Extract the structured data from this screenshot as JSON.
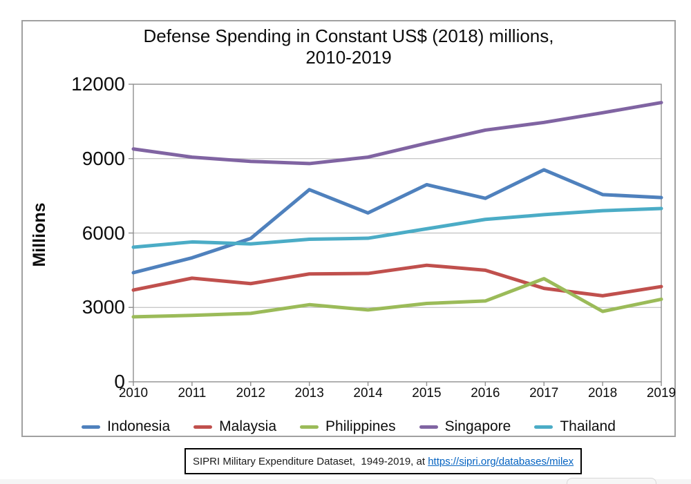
{
  "chart_data": {
    "type": "line",
    "title": "Defense Spending in Constant US$ (2018) millions, 2010-2019",
    "title_lines": [
      "Defense Spending in Constant US$ (2018) millions,",
      "2010-2019"
    ],
    "ylabel": "Millions",
    "xlabel": "",
    "x": [
      2010,
      2011,
      2012,
      2013,
      2014,
      2015,
      2016,
      2017,
      2018,
      2019
    ],
    "ylim": [
      0,
      12000
    ],
    "yticks": [
      0,
      3000,
      6000,
      9000,
      12000
    ],
    "grid": true,
    "legend_position": "bottom",
    "series": [
      {
        "name": "Indonesia",
        "color": "#4F81BD",
        "values": [
          4400,
          5000,
          5780,
          7750,
          6810,
          7950,
          7400,
          8550,
          7550,
          7430
        ]
      },
      {
        "name": "Malaysia",
        "color": "#C0504D",
        "values": [
          3700,
          4180,
          3960,
          4350,
          4370,
          4700,
          4500,
          3770,
          3470,
          3840
        ]
      },
      {
        "name": "Philippines",
        "color": "#9BBB59",
        "values": [
          2620,
          2680,
          2760,
          3110,
          2900,
          3160,
          3260,
          4160,
          2840,
          3330
        ]
      },
      {
        "name": "Singapore",
        "color": "#8064A2",
        "values": [
          9390,
          9060,
          8890,
          8800,
          9060,
          9620,
          10150,
          10460,
          10850,
          11260
        ]
      },
      {
        "name": "Thailand",
        "color": "#4BACC6",
        "values": [
          5430,
          5640,
          5560,
          5750,
          5790,
          6170,
          6550,
          6740,
          6900,
          6990
        ]
      }
    ],
    "axis_color": "#8e8e8e",
    "grid_color": "#b5b5b5"
  },
  "caption": {
    "prefix": "SIPRI Military Expenditure Dataset,  1949-2019, at ",
    "link_text": "https://sipri.org/databases/milex",
    "link_href": "https://sipri.org/databases/milex"
  }
}
